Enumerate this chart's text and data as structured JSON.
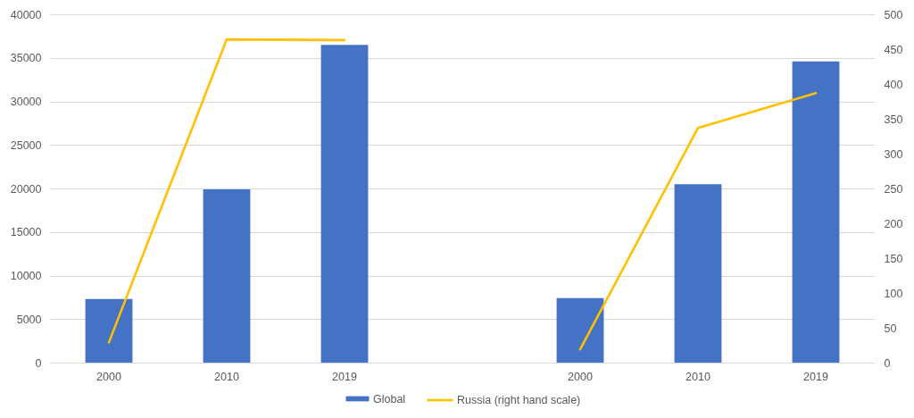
{
  "chart_data": {
    "type": "bar",
    "categories": [
      "2000",
      "2010",
      "2019",
      null,
      "2000",
      "2010",
      "2019"
    ],
    "series": [
      {
        "name": "Global",
        "color": "#4472c4",
        "values": [
          7300,
          19900,
          36500,
          null,
          7400,
          20500,
          34600
        ]
      },
      {
        "name": "Russia (right hand scale)",
        "type": "line",
        "axis": "y2",
        "color": "#ffc000",
        "values": [
          29,
          464,
          463,
          null,
          19,
          337,
          387
        ]
      }
    ],
    "ylim": [
      0,
      40000
    ],
    "yticks": [
      0,
      5000,
      10000,
      15000,
      20000,
      25000,
      30000,
      35000,
      40000
    ],
    "y2lim": [
      0,
      500
    ],
    "y2ticks": [
      0,
      50,
      100,
      150,
      200,
      250,
      300,
      350,
      400,
      450,
      500
    ],
    "grid": "y",
    "legend": "bottom",
    "line_style": "solid"
  }
}
